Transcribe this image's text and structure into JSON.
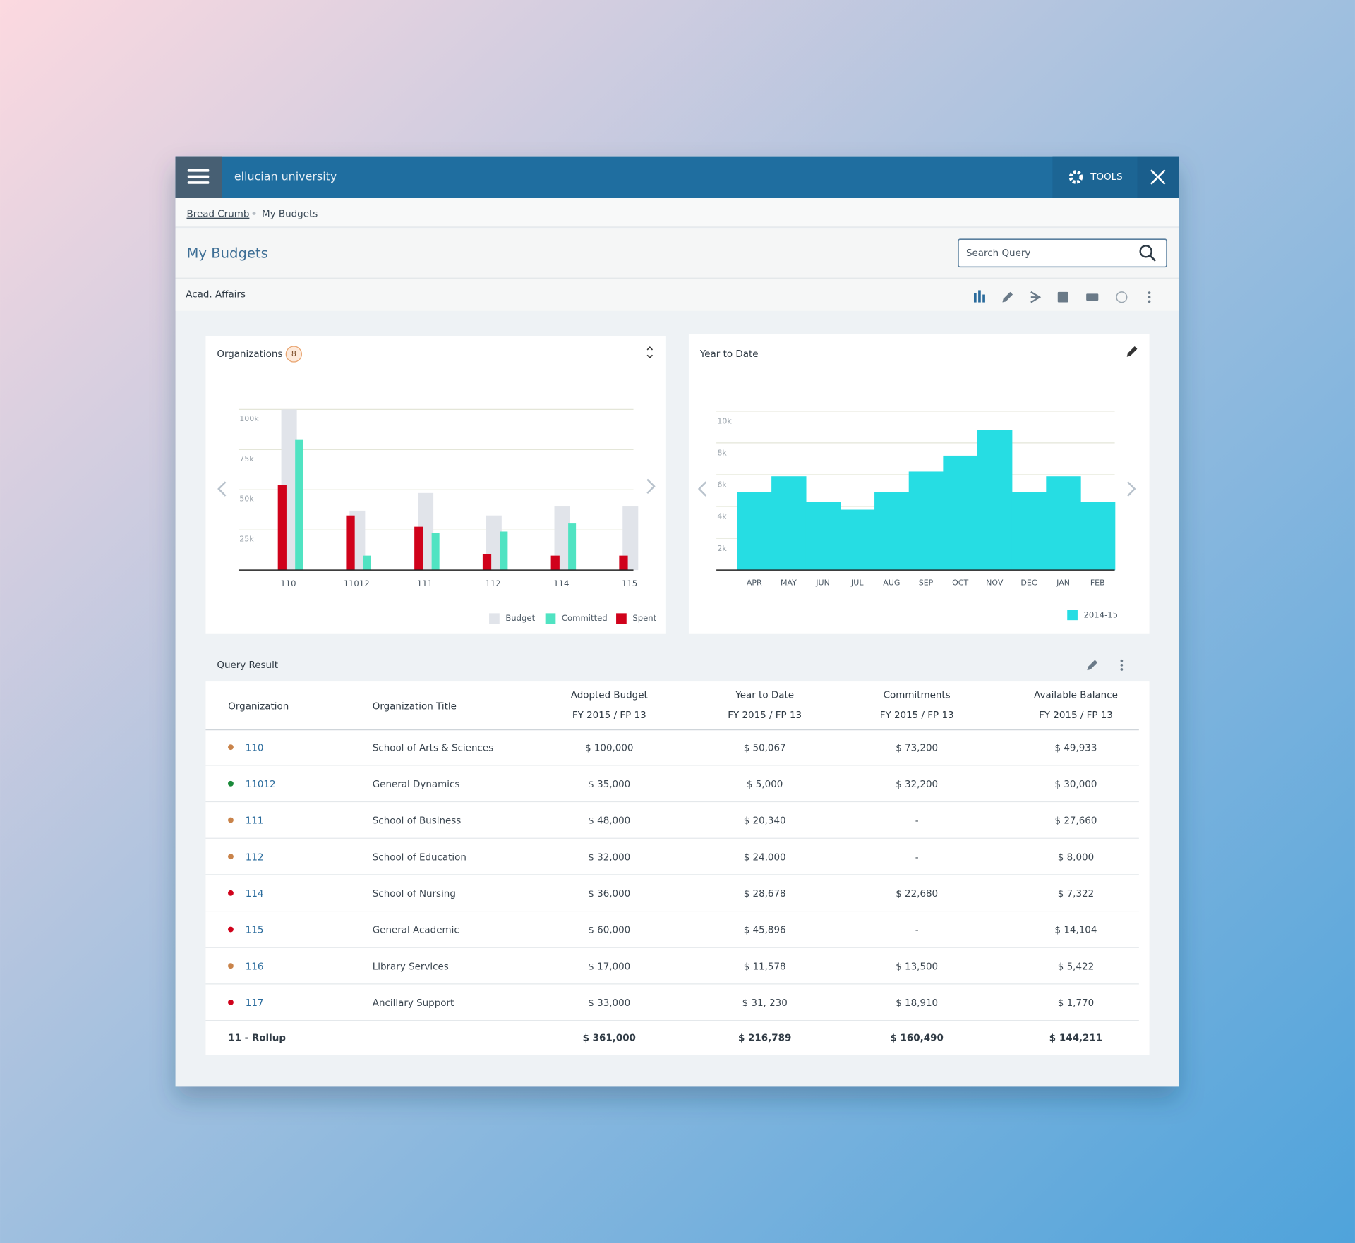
{
  "header": {
    "app_name": "ellucian university",
    "tools": "TOOLS"
  },
  "breadcrumb": [
    "Bread Crumb",
    "My Budgets"
  ],
  "page_title": "My Budgets",
  "search_placeholder": "Search Query",
  "section": "Acad. Affairs",
  "chart_data": [
    {
      "type": "bar",
      "title": "Organizations",
      "badge": 8,
      "categories": [
        "110",
        "11012",
        "111",
        "112",
        "114",
        "115"
      ],
      "series": [
        {
          "name": "Budget",
          "color": "#e1e4ea",
          "values": [
            100000,
            37000,
            48000,
            34000,
            40000,
            40000
          ]
        },
        {
          "name": "Committed",
          "color": "#50e3c2",
          "values": [
            81000,
            9000,
            23000,
            24000,
            29000,
            0
          ]
        },
        {
          "name": "Spent",
          "color": "#d0021b",
          "values": [
            53000,
            34000,
            27000,
            10000,
            9000,
            9000
          ]
        }
      ],
      "ylim": [
        0,
        100000
      ],
      "yticks": [
        {
          "value": 25000,
          "label": "25k"
        },
        {
          "value": 50000,
          "label": "50k"
        },
        {
          "value": 75000,
          "label": "75k"
        },
        {
          "value": 100000,
          "label": "100k"
        }
      ],
      "grid": true,
      "legend": "bottom-right"
    },
    {
      "type": "step-area",
      "title": "Year to Date",
      "categories": [
        "APR",
        "MAY",
        "JUN",
        "JUL",
        "AUG",
        "SEP",
        "OCT",
        "NOV",
        "DEC",
        "JAN",
        "FEB"
      ],
      "series": [
        {
          "name": "2014-15",
          "color": "#26dde3",
          "values": [
            4900,
            5900,
            4300,
            3800,
            4900,
            6200,
            7200,
            8800,
            4900,
            5900,
            4300
          ]
        }
      ],
      "ylim": [
        0,
        10000
      ],
      "yticks": [
        {
          "value": 2000,
          "label": "2k"
        },
        {
          "value": 4000,
          "label": "4k"
        },
        {
          "value": 6000,
          "label": "6k"
        },
        {
          "value": 8000,
          "label": "8k"
        },
        {
          "value": 10000,
          "label": "10k"
        }
      ],
      "grid": true,
      "legend": "bottom-right"
    }
  ],
  "query_result": {
    "title": "Query Result",
    "columns": [
      [
        "Organization"
      ],
      [
        "Organization Title"
      ],
      [
        "Adopted Budget",
        "FY 2015 / FP 13"
      ],
      [
        "Year to Date",
        "FY 2015 / FP 13"
      ],
      [
        "Commitments",
        "FY 2015 / FP 13"
      ],
      [
        "Available Balance",
        "FY 2015 / FP 13"
      ]
    ],
    "rows": [
      {
        "status_color": "#c9834a",
        "cells": [
          "110",
          "School of Arts & Sciences",
          "$ 100,000",
          "$ 50,067",
          "$ 73,200",
          "$ 49,933"
        ]
      },
      {
        "status_color": "#1a8a3a",
        "cells": [
          "11012",
          "General Dynamics",
          "$ 35,000",
          "$ 5,000",
          "$ 32,200",
          "$ 30,000"
        ]
      },
      {
        "status_color": "#c9834a",
        "cells": [
          "111",
          "School of Business",
          "$ 48,000",
          "$ 20,340",
          "-",
          "$ 27,660"
        ]
      },
      {
        "status_color": "#c9834a",
        "cells": [
          "112",
          "School of Education",
          "$ 32,000",
          "$ 24,000",
          "-",
          "$ 8,000"
        ]
      },
      {
        "status_color": "#d0021b",
        "cells": [
          "114",
          "School of Nursing",
          "$ 36,000",
          "$ 28,678",
          "$ 22,680",
          "$ 7,322"
        ]
      },
      {
        "status_color": "#d0021b",
        "cells": [
          "115",
          "General Academic",
          "$ 60,000",
          "$ 45,896",
          "-",
          "$ 14,104"
        ]
      },
      {
        "status_color": "#c9834a",
        "cells": [
          "116",
          "Library Services",
          "$ 17,000",
          "$ 11,578",
          "$ 13,500",
          "$ 5,422"
        ]
      },
      {
        "status_color": "#d0021b",
        "cells": [
          "117",
          "Ancillary Support",
          "$ 33,000",
          "$ 31, 230",
          "$ 18,910",
          "$ 1,770"
        ]
      }
    ],
    "total": [
      "11 - Rollup",
      "$ 361,000",
      "$ 216,789",
      "$ 160,490",
      "$ 144,211"
    ]
  }
}
